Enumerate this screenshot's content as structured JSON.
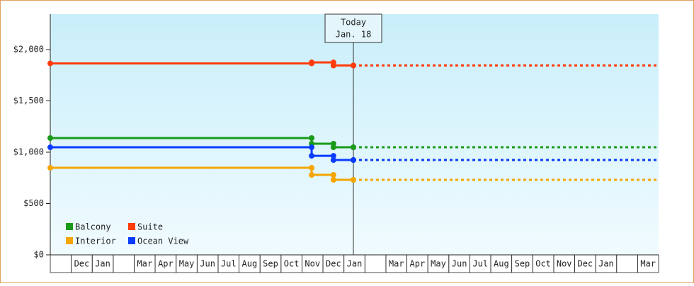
{
  "chart_data": {
    "type": "step",
    "ylim": [
      0,
      2345
    ],
    "yticks": [
      {
        "value": 0,
        "label": "$0"
      },
      {
        "value": 500,
        "label": "$500"
      },
      {
        "value": 1000,
        "label": "$1,000"
      },
      {
        "value": 1500,
        "label": "$1,500"
      },
      {
        "value": 2000,
        "label": "$2,000"
      }
    ],
    "xlim": [
      0,
      29
    ],
    "categories": [
      null,
      "Dec",
      "Jan",
      null,
      "Mar",
      "Apr",
      "May",
      "Jun",
      "Jul",
      "Aug",
      "Sep",
      "Oct",
      "Nov",
      "Dec",
      "Jan",
      null,
      "Mar",
      "Apr",
      "May",
      "Jun",
      "Jul",
      "Aug",
      "Sep",
      "Oct",
      "Nov",
      "Dec",
      "Jan",
      null,
      "Mar"
    ],
    "today": {
      "x": 14.45,
      "label": "Today",
      "date": "Jan. 18"
    },
    "x": [
      0,
      12.46,
      13.5,
      14.45
    ],
    "series": [
      {
        "name": "Balcony",
        "color": "#1a9a1a",
        "values": [
          1138,
          1083,
          1048,
          1048
        ]
      },
      {
        "name": "Suite",
        "color": "#ff3c0a",
        "values": [
          1865,
          1875,
          1845,
          1845
        ]
      },
      {
        "name": "Interior",
        "color": "#f5a500",
        "values": [
          848,
          779,
          731,
          731
        ]
      },
      {
        "name": "Ocean View",
        "color": "#0a3cff",
        "values": [
          1048,
          965,
          924,
          924
        ]
      }
    ],
    "legend": "lower left"
  }
}
